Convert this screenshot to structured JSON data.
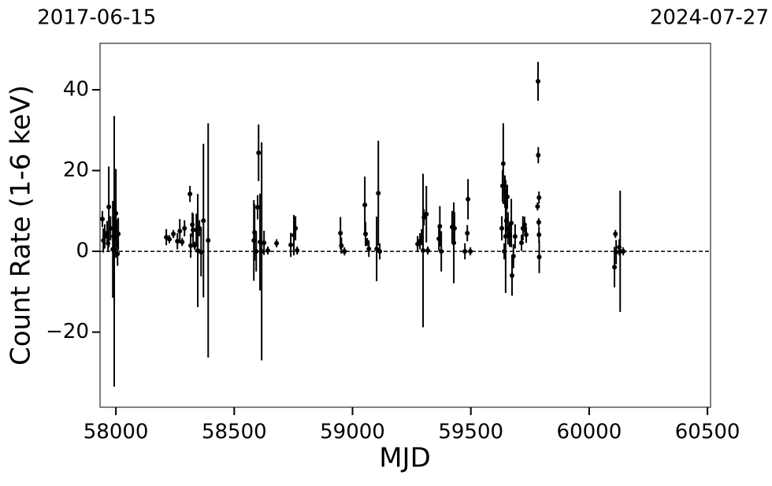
{
  "chart_data": {
    "type": "errorbar-scatter",
    "xlabel": "MJD",
    "ylabel": "Count Rate (1-6 keV)",
    "xlim": [
      57933,
      60513
    ],
    "ylim": [
      -38.6,
      51.5
    ],
    "xticks": [
      58000,
      58500,
      59000,
      59500,
      60000,
      60500
    ],
    "yticks": [
      {
        "value": -20,
        "label": "−20"
      },
      0,
      20,
      40
    ],
    "x2ticks": [
      {
        "value": 57919,
        "label": "2017-06-15"
      },
      {
        "value": 60518,
        "label": "2024-07-27"
      }
    ],
    "hline": 0,
    "color": "#000000",
    "series": [
      {
        "name": "data",
        "x": [
          57943,
          57947,
          57953,
          57963,
          57967,
          57970,
          57977,
          57987,
          57990,
          57993,
          57997,
          58000,
          58003,
          58007,
          58010,
          58213,
          58226,
          58243,
          58260,
          58270,
          58280,
          58290,
          58313,
          58316,
          58323,
          58326,
          58333,
          58340,
          58346,
          58353,
          58360,
          58370,
          58390,
          58583,
          58586,
          58593,
          58599,
          58603,
          58609,
          58616,
          58626,
          58642,
          58679,
          58739,
          58752,
          58759,
          58766,
          58949,
          58953,
          58966,
          59052,
          59055,
          59062,
          59069,
          59102,
          59109,
          59115,
          59275,
          59285,
          59292,
          59298,
          59302,
          59312,
          59318,
          59365,
          59369,
          59375,
          59421,
          59428,
          59431,
          59475,
          59485,
          59488,
          59498,
          59631,
          59634,
          59637,
          59641,
          59644,
          59647,
          59650,
          59654,
          59657,
          59664,
          59671,
          59674,
          59680,
          59687,
          59714,
          59720,
          59727,
          59734,
          59784,
          59785,
          59788,
          59782,
          59787,
          59788,
          59789,
          60107,
          60111,
          60114,
          60127,
          60131,
          60144
        ],
        "values": [
          8,
          2.7,
          3.7,
          4.5,
          2,
          11,
          5.7,
          0.5,
          3.7,
          0,
          7.6,
          9.4,
          4.3,
          -0.6,
          4.3,
          3.5,
          3,
          4.3,
          2.5,
          5,
          2.3,
          5.7,
          14.2,
          1.4,
          6.6,
          5.3,
          1.4,
          5.3,
          0.2,
          5.7,
          -0.2,
          7.6,
          2.7,
          2.7,
          4.7,
          0,
          10.9,
          24.4,
          2.3,
          0,
          2.1,
          0.2,
          2,
          1.6,
          4,
          5.7,
          0.2,
          4.5,
          1.4,
          0,
          11.5,
          4.3,
          2.3,
          0.6,
          0.6,
          14.4,
          0,
          1.8,
          2.5,
          3.5,
          0.2,
          8.4,
          9.2,
          0.2,
          3.1,
          6.2,
          0,
          6,
          2.1,
          5.7,
          0,
          4.5,
          12.9,
          0,
          5.7,
          16.2,
          21.7,
          0,
          14.8,
          3.7,
          7.6,
          13.5,
          5.7,
          4.1,
          7,
          -6,
          -1.2,
          3.7,
          2.1,
          5.7,
          6.6,
          4.1,
          42.1,
          23.8,
          13.3,
          11.1,
          7.2,
          4.1,
          -1.4,
          -3.9,
          4.3,
          -0.2,
          1,
          0,
          0
        ],
        "errors": [
          2,
          3,
          3,
          3,
          2,
          10,
          3,
          12,
          3,
          33.5,
          5,
          11,
          3,
          3,
          4,
          2,
          1,
          1,
          2,
          3,
          1,
          2,
          2,
          3,
          3,
          4,
          1,
          4,
          14,
          2,
          6,
          19,
          29,
          10,
          7,
          5,
          3,
          7,
          12,
          27,
          3,
          1,
          1,
          3,
          5,
          3,
          1,
          4,
          2,
          1,
          7,
          3,
          1,
          2,
          8,
          13,
          2,
          2,
          2,
          2,
          19,
          2,
          7,
          1,
          3,
          5,
          5,
          4,
          10,
          4,
          2,
          2,
          5,
          1,
          3,
          4,
          10,
          2,
          4,
          14,
          4,
          3,
          4,
          3,
          6,
          5,
          3,
          3,
          2,
          3,
          2,
          2,
          4.8,
          2,
          1.5,
          1,
          1,
          2,
          4,
          5,
          1,
          3,
          2,
          15,
          1
        ]
      }
    ]
  }
}
